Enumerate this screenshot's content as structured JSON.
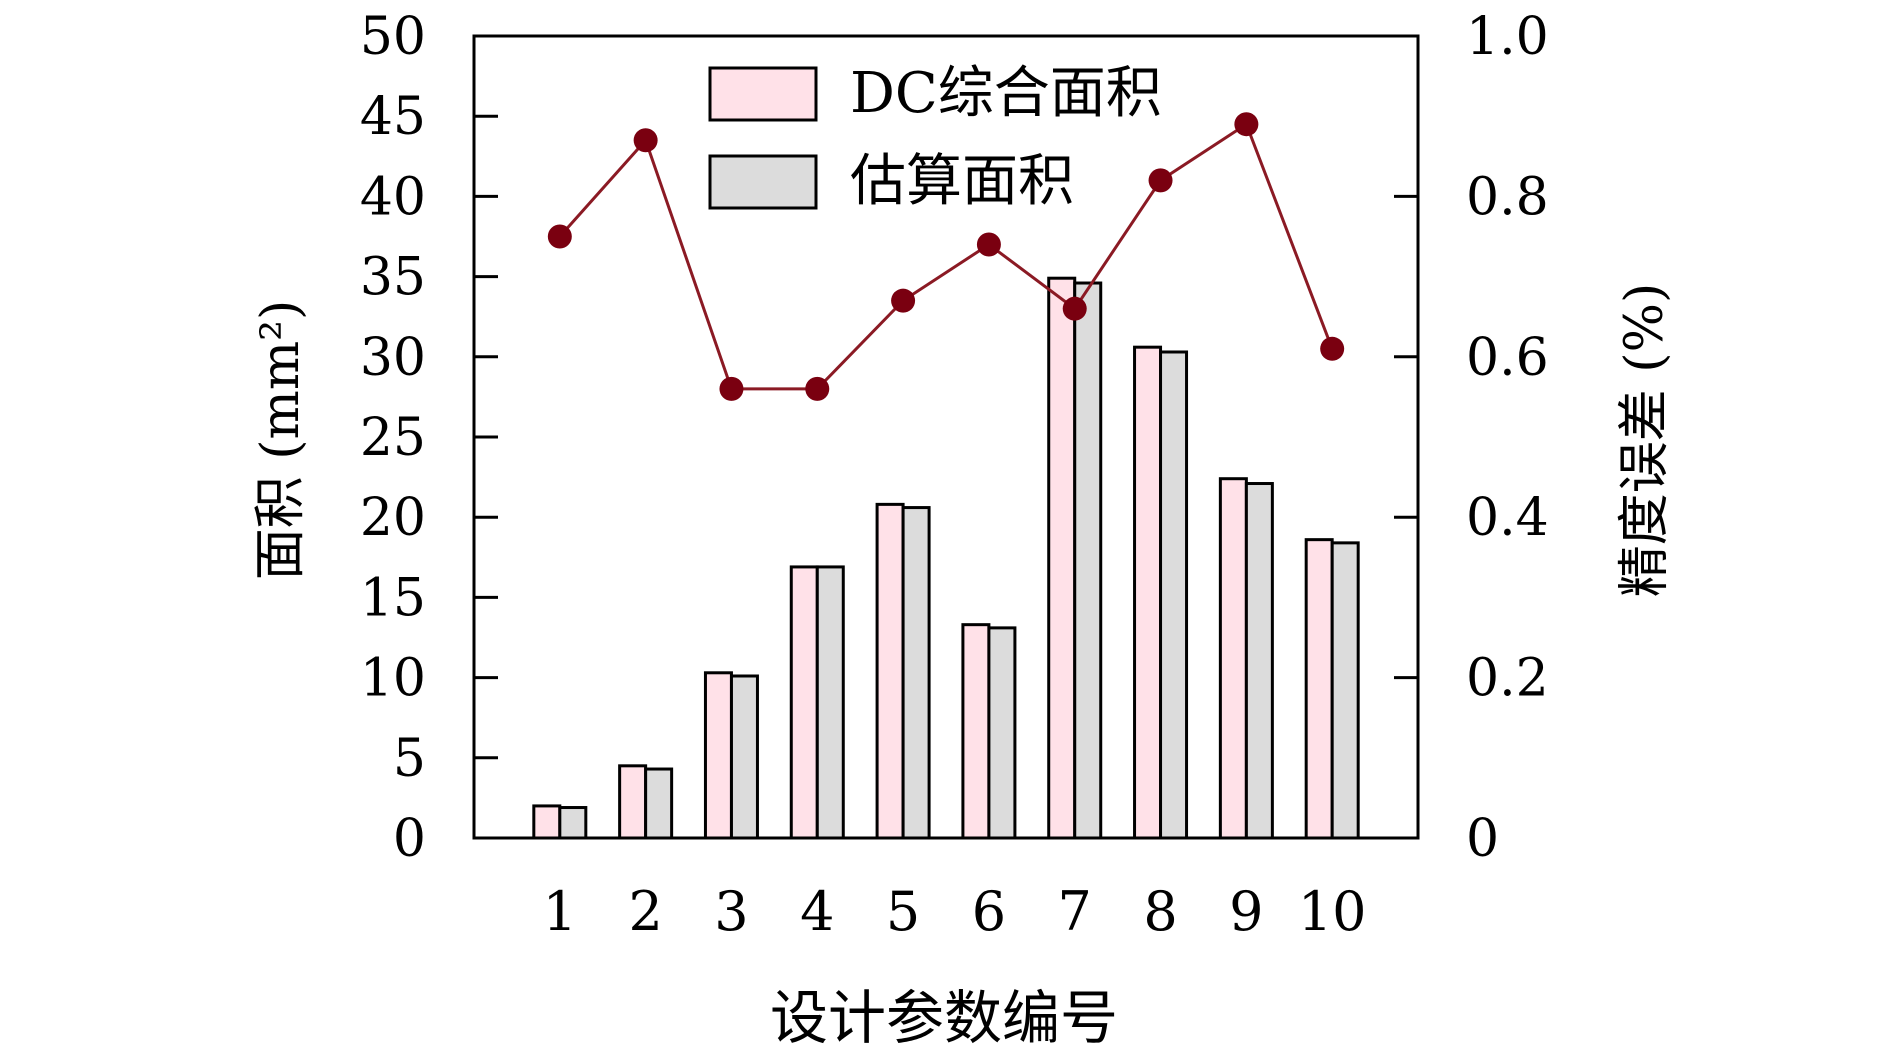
{
  "chart_data": {
    "type": "bar",
    "xlabel": "设计参数编号",
    "ylabel_left": "面积 (mm²)",
    "ylabel_right": "精度误差 (%)",
    "categories": [
      "1",
      "2",
      "3",
      "4",
      "5",
      "6",
      "7",
      "8",
      "9",
      "10"
    ],
    "ylim_left": [
      0,
      50
    ],
    "ylim_right": [
      0,
      1.0
    ],
    "yticks_left": [
      "0",
      "5",
      "10",
      "15",
      "20",
      "25",
      "30",
      "35",
      "40",
      "45",
      "50"
    ],
    "yticks_right": [
      "0",
      "0.2",
      "0.4",
      "0.6",
      "0.8",
      "1.0"
    ],
    "grid": false,
    "legend_position": "top",
    "series": [
      {
        "name": "DC综合面积",
        "kind": "bar",
        "axis": "left",
        "color": "#ffe1e8",
        "values": [
          2.0,
          4.5,
          10.3,
          16.9,
          20.8,
          13.3,
          34.9,
          30.6,
          22.4,
          18.6
        ]
      },
      {
        "name": "估算面积",
        "kind": "bar",
        "axis": "left",
        "color": "#dcdcdc",
        "values": [
          1.9,
          4.3,
          10.1,
          16.9,
          20.6,
          13.1,
          34.6,
          30.3,
          22.1,
          18.4
        ]
      },
      {
        "kind": "line",
        "axis": "right",
        "color": "#8b1a24",
        "marker_color": "#7a0010",
        "values": [
          0.75,
          0.87,
          0.56,
          0.56,
          0.67,
          0.74,
          0.66,
          0.82,
          0.89,
          0.61
        ]
      }
    ]
  }
}
